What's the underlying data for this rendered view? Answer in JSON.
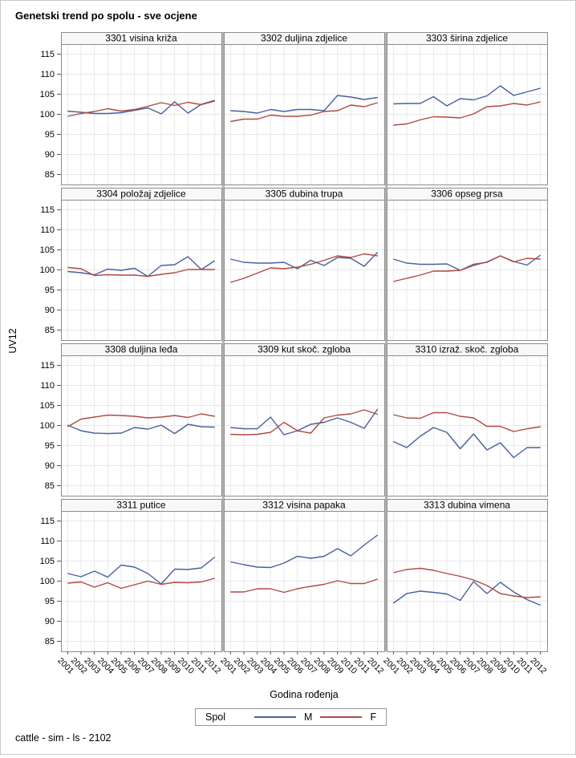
{
  "page": {
    "title": "Genetski trend po spolu - sve ocjene",
    "footer": "cattle - sim - ls - 2102"
  },
  "axes": {
    "y_label": "UV12",
    "x_label": "Godina rođenja"
  },
  "legend": {
    "title": "Spol",
    "series": [
      {
        "label": "M",
        "color": "#47619e"
      },
      {
        "label": "F",
        "color": "#b04a41"
      }
    ]
  },
  "chart_data": {
    "type": "line",
    "title": "Genetski trend po spolu - sve ocjene",
    "xlabel": "Godina rođenja",
    "ylabel": "UV12",
    "x": [
      2001,
      2002,
      2003,
      2004,
      2005,
      2006,
      2007,
      2008,
      2009,
      2010,
      2011,
      2012
    ],
    "y_ticks": [
      115,
      110,
      105,
      100,
      95,
      90,
      85
    ],
    "ylim": [
      82.5,
      117.5
    ],
    "grid": true,
    "legend_position": "bottom",
    "colors": {
      "M": "#47619e",
      "F": "#b04a41",
      "grid": "#e8e8e8",
      "panel_border": "#8c8c8c",
      "header_bg": "#f8f8f8",
      "tick": "#595959",
      "divider": "#b3b3b3"
    },
    "panels": [
      {
        "id": "3301",
        "title": "3301 visina križa",
        "series": [
          {
            "name": "M",
            "values": [
              100.8,
              100.5,
              100.2,
              100.2,
              100.4,
              101.0,
              101.6,
              100.1,
              103.1,
              100.3,
              102.5,
              103.5
            ]
          },
          {
            "name": "F",
            "values": [
              99.5,
              100.2,
              100.7,
              101.4,
              100.8,
              101.2,
              102.0,
              102.9,
              102.2,
              103.0,
              102.4,
              103.3
            ]
          }
        ]
      },
      {
        "id": "3302",
        "title": "3302 duljina zdjelice",
        "series": [
          {
            "name": "M",
            "values": [
              100.9,
              100.7,
              100.3,
              101.2,
              100.7,
              101.2,
              101.2,
              100.9,
              104.7,
              104.3,
              103.7,
              104.2
            ]
          },
          {
            "name": "F",
            "values": [
              98.2,
              98.8,
              98.8,
              99.8,
              99.5,
              99.5,
              99.8,
              100.7,
              100.9,
              102.3,
              101.9,
              102.9
            ]
          }
        ]
      },
      {
        "id": "3303",
        "title": "3303 širina zdjelice",
        "series": [
          {
            "name": "M",
            "values": [
              102.6,
              102.7,
              102.7,
              104.4,
              102.1,
              103.9,
              103.6,
              104.6,
              107.1,
              104.7,
              105.6,
              106.5
            ]
          },
          {
            "name": "F",
            "values": [
              97.3,
              97.6,
              98.6,
              99.4,
              99.3,
              99.1,
              100.1,
              101.9,
              102.1,
              102.7,
              102.3,
              103.1
            ]
          }
        ]
      },
      {
        "id": "3304",
        "title": "3304 položaj zdjelice",
        "series": [
          {
            "name": "M",
            "values": [
              99.6,
              99.3,
              98.8,
              100.2,
              99.9,
              100.4,
              98.4,
              101.1,
              101.3,
              103.3,
              100.1,
              102.3
            ]
          },
          {
            "name": "F",
            "values": [
              100.6,
              100.3,
              98.6,
              98.8,
              98.7,
              98.7,
              98.4,
              98.9,
              99.3,
              100.1,
              100.1,
              100.1
            ]
          }
        ]
      },
      {
        "id": "3305",
        "title": "3305 dubina trupa",
        "series": [
          {
            "name": "M",
            "values": [
              102.7,
              101.9,
              101.7,
              101.7,
              101.9,
              100.3,
              102.4,
              101.1,
              103.1,
              102.9,
              100.9,
              104.4
            ]
          },
          {
            "name": "F",
            "values": [
              96.9,
              97.9,
              99.2,
              100.5,
              100.3,
              100.7,
              101.4,
              102.4,
              103.5,
              103.1,
              104.0,
              103.5
            ]
          }
        ]
      },
      {
        "id": "3306",
        "title": "3306 opseg prsa",
        "series": [
          {
            "name": "M",
            "values": [
              102.7,
              101.7,
              101.4,
              101.4,
              101.5,
              99.9,
              101.4,
              101.9,
              103.5,
              102.1,
              101.2,
              103.7
            ]
          },
          {
            "name": "F",
            "values": [
              97.1,
              97.9,
              98.7,
              99.7,
              99.7,
              99.9,
              101.1,
              102.0,
              103.5,
              102.0,
              102.9,
              102.7
            ]
          }
        ]
      },
      {
        "id": "3308",
        "title": "3308 duljina leđa",
        "series": [
          {
            "name": "M",
            "values": [
              100.1,
              98.7,
              98.1,
              98.0,
              98.1,
              99.5,
              99.1,
              100.1,
              98.0,
              100.3,
              99.7,
              99.6
            ]
          },
          {
            "name": "F",
            "values": [
              99.7,
              101.6,
              102.1,
              102.6,
              102.5,
              102.3,
              101.9,
              102.1,
              102.5,
              102.0,
              102.9,
              102.3
            ]
          }
        ]
      },
      {
        "id": "3309",
        "title": "3309 kut skoč. zgloba",
        "series": [
          {
            "name": "M",
            "values": [
              99.5,
              99.2,
              99.2,
              102.1,
              97.7,
              98.7,
              100.3,
              100.8,
              101.9,
              100.8,
              99.3,
              104.1
            ]
          },
          {
            "name": "F",
            "values": [
              97.8,
              97.7,
              97.8,
              98.3,
              100.8,
              98.7,
              98.1,
              101.9,
              102.6,
              102.9,
              103.9,
              102.8
            ]
          }
        ]
      },
      {
        "id": "3310",
        "title": "3310 izraž. skoč. zgloba",
        "series": [
          {
            "name": "M",
            "values": [
              96.0,
              94.5,
              97.3,
              99.5,
              98.3,
              94.2,
              97.9,
              93.9,
              95.7,
              92.0,
              94.5,
              94.5
            ]
          },
          {
            "name": "F",
            "values": [
              102.7,
              101.9,
              101.8,
              103.2,
              103.2,
              102.3,
              101.9,
              99.8,
              99.8,
              98.5,
              99.2,
              99.7
            ]
          }
        ]
      },
      {
        "id": "3311",
        "title": "3311 putice",
        "series": [
          {
            "name": "M",
            "values": [
              101.9,
              101.1,
              102.5,
              101.0,
              104.0,
              103.5,
              101.9,
              99.3,
              103.0,
              102.9,
              103.3,
              106.0
            ]
          },
          {
            "name": "F",
            "values": [
              99.5,
              99.8,
              98.5,
              99.6,
              98.2,
              99.1,
              100.0,
              99.2,
              99.7,
              99.6,
              99.8,
              100.7
            ]
          }
        ]
      },
      {
        "id": "3312",
        "title": "3312 visina papaka",
        "series": [
          {
            "name": "M",
            "values": [
              104.8,
              104.1,
              103.5,
              103.4,
              104.5,
              106.2,
              105.7,
              106.2,
              108.1,
              106.3,
              109.0,
              111.5
            ]
          },
          {
            "name": "F",
            "values": [
              97.3,
              97.3,
              98.1,
              98.1,
              97.2,
              98.1,
              98.7,
              99.2,
              100.1,
              99.4,
              99.4,
              100.5
            ]
          }
        ]
      },
      {
        "id": "3313",
        "title": "3313 dubina vimena",
        "series": [
          {
            "name": "M",
            "values": [
              94.5,
              96.9,
              97.5,
              97.2,
              96.8,
              95.2,
              99.9,
              96.9,
              99.7,
              97.3,
              95.4,
              94.0
            ]
          },
          {
            "name": "F",
            "values": [
              102.1,
              102.9,
              103.2,
              102.7,
              101.9,
              101.2,
              100.3,
              98.9,
              96.9,
              96.3,
              95.9,
              96.1
            ]
          }
        ]
      }
    ]
  }
}
